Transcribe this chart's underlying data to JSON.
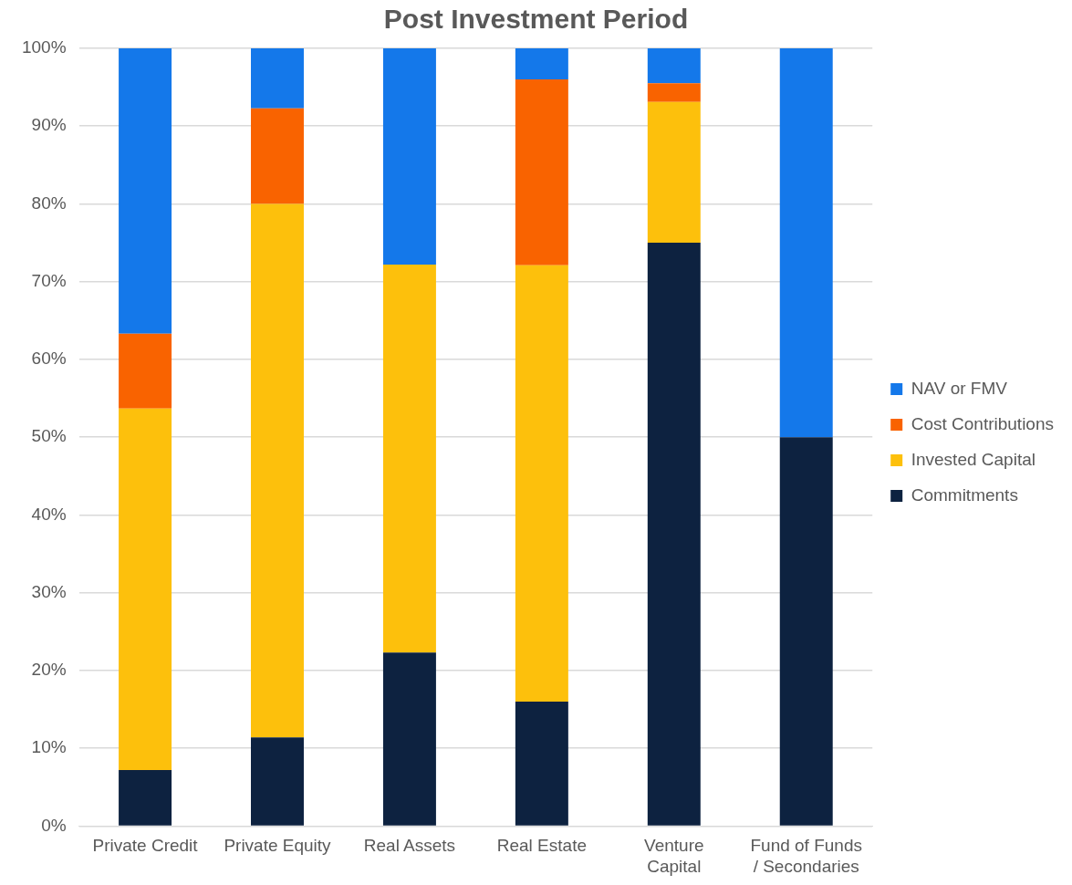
{
  "chart_data": {
    "type": "bar",
    "title": "Post Investment Period",
    "stacked": true,
    "categories": [
      "Private Credit",
      "Private Equity",
      "Real Assets",
      "Real Estate",
      "Venture Capital",
      "Fund of Funds / Secondaries"
    ],
    "series": [
      {
        "name": "Commitments",
        "color": "#0d2240",
        "values": [
          7.2,
          11.4,
          22.3,
          16,
          75,
          50
        ]
      },
      {
        "name": "Invested Capital",
        "color": "#fdc00c",
        "values": [
          46.5,
          68.6,
          49.9,
          56.1,
          18.1,
          0
        ]
      },
      {
        "name": "Cost Contributions",
        "color": "#f96300",
        "values": [
          9.6,
          12.3,
          0,
          23.9,
          2.4,
          0
        ]
      },
      {
        "name": "NAV or FMV",
        "color": "#1478ea",
        "values": [
          36.7,
          7.7,
          27.8,
          4,
          4.5,
          50
        ]
      }
    ],
    "ylim": [
      0,
      100
    ],
    "yticks": [
      {
        "value": 0,
        "label": "0%"
      },
      {
        "value": 10,
        "label": "10%"
      },
      {
        "value": 20,
        "label": "20%"
      },
      {
        "value": 30,
        "label": "30%"
      },
      {
        "value": 40,
        "label": "40%"
      },
      {
        "value": 50,
        "label": "50%"
      },
      {
        "value": 60,
        "label": "60%"
      },
      {
        "value": 70,
        "label": "70%"
      },
      {
        "value": 80,
        "label": "80%"
      },
      {
        "value": 90,
        "label": "90%"
      },
      {
        "value": 100,
        "label": "100%"
      }
    ],
    "grid": "y",
    "legend": "right"
  }
}
